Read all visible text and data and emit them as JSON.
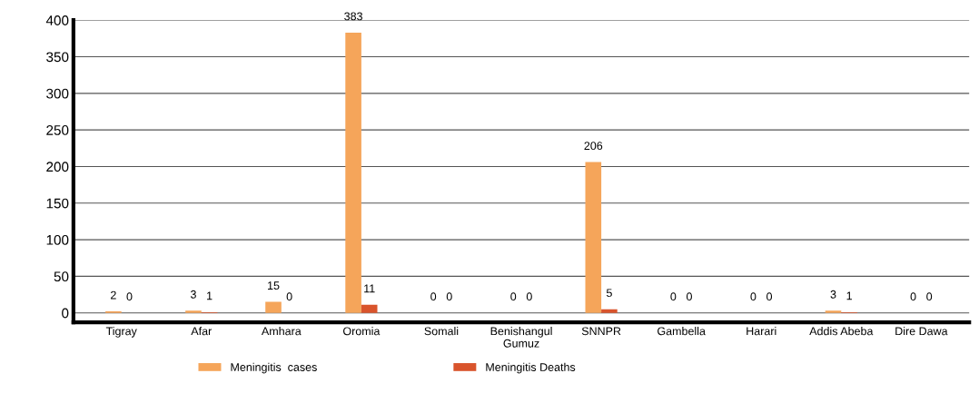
{
  "chart_data": {
    "type": "bar",
    "categories": [
      "Tigray",
      "Afar",
      "Amhara",
      "Oromia",
      "Somali",
      "Benishangul\nGumuz",
      "SNNPR",
      "Gambella",
      "Harari",
      "Addis Abeba",
      "Dire Dawa"
    ],
    "series": [
      {
        "name": "Meningitis  cases",
        "color": "#f5a55a",
        "values": [
          2,
          3,
          15,
          383,
          0,
          0,
          206,
          0,
          0,
          3,
          0
        ]
      },
      {
        "name": "Meningitis Deaths",
        "color": "#d9542c",
        "values": [
          0,
          1,
          0,
          11,
          0,
          0,
          5,
          0,
          0,
          1,
          0
        ]
      }
    ],
    "ylim": [
      -13,
      400
    ],
    "yticks": [
      0,
      50,
      100,
      150,
      200,
      250,
      300,
      350,
      400
    ],
    "grid": "y",
    "legend": "bottom",
    "data_labels": true
  }
}
